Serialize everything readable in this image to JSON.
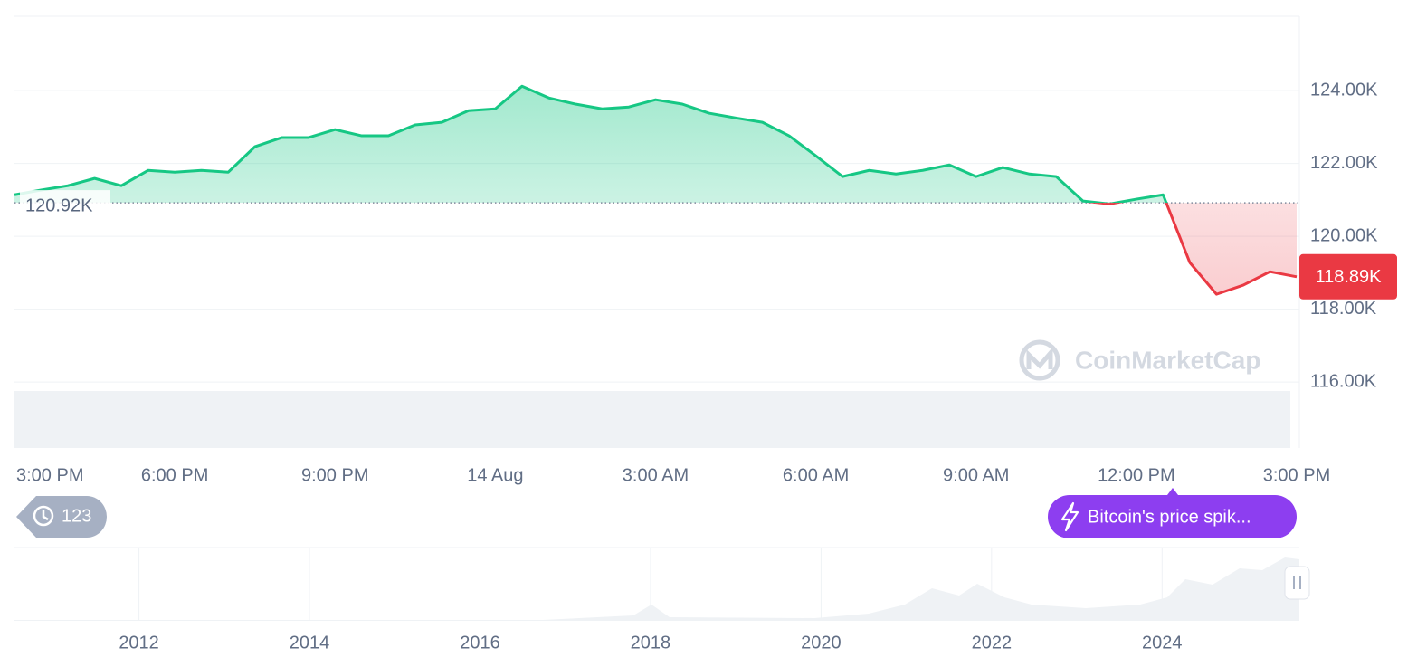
{
  "chart_data": {
    "type": "line",
    "categories": [
      "3:00 PM",
      null,
      null,
      null,
      null,
      null,
      "6:00 PM",
      null,
      null,
      null,
      null,
      null,
      "9:00 PM",
      null,
      null,
      null,
      null,
      null,
      "14 Aug",
      null,
      null,
      null,
      null,
      null,
      "3:00 AM",
      null,
      null,
      null,
      null,
      null,
      "6:00 AM",
      null,
      null,
      null,
      null,
      null,
      "9:00 AM",
      null,
      null,
      null,
      null,
      null,
      "12:00 PM",
      null,
      null,
      null,
      null,
      null,
      "3:00 PM"
    ],
    "series": [
      {
        "color": "#16c784",
        "values": [
          121.14,
          121.27,
          121.39,
          121.59,
          121.39,
          121.81,
          121.76,
          121.81,
          121.76,
          122.46,
          122.71,
          122.71,
          122.93,
          122.76,
          122.76,
          123.06,
          123.13,
          123.45,
          123.5,
          124.12,
          123.8,
          123.63,
          123.5,
          123.55,
          123.75,
          123.63,
          123.38,
          123.25,
          123.13,
          122.76,
          122.21,
          121.64,
          121.81,
          121.71,
          121.81,
          121.96,
          121.64,
          121.89,
          121.71,
          121.64,
          120.97,
          120.89,
          121.02,
          121.14,
          119.28,
          118.41,
          118.66,
          119.03,
          118.89
        ]
      }
    ],
    "down_color": "#ea3943",
    "reference": {
      "value": 120.92,
      "label": "120.92K"
    },
    "last_label": "118.89K",
    "ylim": [
      114.19,
      126.04
    ],
    "yticks": [
      {
        "value": 116,
        "label": "116.00K"
      },
      {
        "value": 118,
        "label": "118.00K"
      },
      {
        "value": 120,
        "label": "120.00K"
      },
      {
        "value": 122,
        "label": "122.00K"
      },
      {
        "value": 124,
        "label": "124.00K"
      }
    ],
    "grid": true,
    "watermark": "CoinMarketCap",
    "history_badge": "123",
    "news_badge": "Bitcoin's price spik...",
    "navigator": {
      "xlim": [
        2010.54,
        2025.61
      ],
      "xticks": [
        2012,
        2014,
        2016,
        2018,
        2020,
        2022,
        2024
      ]
    }
  }
}
